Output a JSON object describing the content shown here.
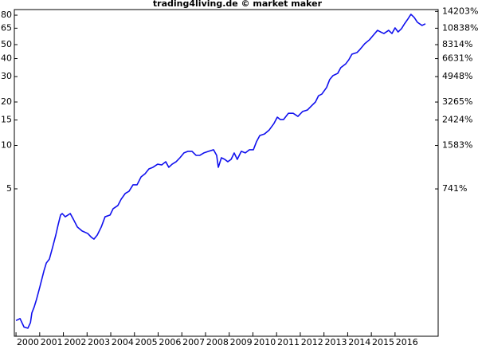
{
  "chart_data": {
    "type": "line",
    "title": "trading4living.de © market maker",
    "x": [
      2000.0,
      2000.17,
      2000.34,
      2000.5,
      2000.61,
      2000.67,
      2000.77,
      2000.87,
      2001.01,
      2001.18,
      2001.28,
      2001.41,
      2001.55,
      2001.68,
      2001.78,
      2001.88,
      2001.95,
      2002.08,
      2002.29,
      2002.42,
      2002.59,
      2002.79,
      2003.03,
      2003.19,
      2003.29,
      2003.43,
      2003.6,
      2003.76,
      2003.97,
      2004.1,
      2004.3,
      2004.44,
      2004.61,
      2004.77,
      2004.94,
      2005.11,
      2005.28,
      2005.45,
      2005.61,
      2005.78,
      2005.98,
      2006.15,
      2006.32,
      2006.45,
      2006.59,
      2006.76,
      2006.92,
      2007.09,
      2007.26,
      2007.43,
      2007.6,
      2007.76,
      2007.93,
      2008.13,
      2008.34,
      2008.47,
      2008.54,
      2008.67,
      2008.81,
      2008.94,
      2009.08,
      2009.21,
      2009.34,
      2009.51,
      2009.68,
      2009.85,
      2010.02,
      2010.15,
      2010.29,
      2010.49,
      2010.69,
      2010.89,
      2011.03,
      2011.16,
      2011.29,
      2011.5,
      2011.7,
      2011.9,
      2012.1,
      2012.3,
      2012.5,
      2012.64,
      2012.77,
      2012.91,
      2013.11,
      2013.24,
      2013.38,
      2013.58,
      2013.71,
      2013.92,
      2014.05,
      2014.18,
      2014.39,
      2014.52,
      2014.72,
      2014.92,
      2015.06,
      2015.26,
      2015.39,
      2015.53,
      2015.73,
      2015.87,
      2016.0,
      2016.13,
      2016.27,
      2016.4,
      2016.54,
      2016.67,
      2016.81,
      2016.94,
      2017.14,
      2017.28
    ],
    "series": [
      {
        "color": "#1010ee",
        "values": [
          0.61,
          0.63,
          0.55,
          0.54,
          0.59,
          0.69,
          0.76,
          0.86,
          1.05,
          1.35,
          1.53,
          1.63,
          1.98,
          2.39,
          2.82,
          3.29,
          3.37,
          3.2,
          3.37,
          3.08,
          2.72,
          2.55,
          2.45,
          2.3,
          2.24,
          2.39,
          2.72,
          3.2,
          3.29,
          3.64,
          3.83,
          4.24,
          4.64,
          4.81,
          5.33,
          5.33,
          6.05,
          6.37,
          6.87,
          7.05,
          7.41,
          7.32,
          7.71,
          7.05,
          7.41,
          7.71,
          8.21,
          8.87,
          9.1,
          9.1,
          8.53,
          8.53,
          8.87,
          9.1,
          9.33,
          8.53,
          7.05,
          8.21,
          8.0,
          7.71,
          8.0,
          8.87,
          8.0,
          9.1,
          8.87,
          9.33,
          9.33,
          10.6,
          11.7,
          12.0,
          12.8,
          14.2,
          15.7,
          15.1,
          15.1,
          16.7,
          16.7,
          15.9,
          17.2,
          17.6,
          19.0,
          20.0,
          22.1,
          22.7,
          25.2,
          28.6,
          30.5,
          31.6,
          34.6,
          36.8,
          39.3,
          42.9,
          44.0,
          46.3,
          50.7,
          54.0,
          57.5,
          62.8,
          61.2,
          59.7,
          62.8,
          59.7,
          65.3,
          61.2,
          64.4,
          69.7,
          75.2,
          81.1,
          77.1,
          71.5,
          67.9,
          69.7
        ]
      }
    ],
    "xlim": [
      1999.93,
      2017.82
    ],
    "xticks": [
      2000,
      2001,
      2002,
      2003,
      2004,
      2005,
      2006,
      2007,
      2008,
      2009,
      2010,
      2011,
      2012,
      2013,
      2014,
      2015,
      2016
    ],
    "ylim": [
      0.475,
      87.5
    ],
    "ylog": true,
    "yticks": [
      5,
      10,
      15,
      20,
      30,
      40,
      50,
      65,
      80
    ],
    "y2lim": [
      -20,
      14630
    ],
    "y2log": true,
    "y2ticks": [
      {
        "value": 741,
        "label": "741%"
      },
      {
        "value": 1583,
        "label": "1583%"
      },
      {
        "value": 2424,
        "label": "2424%"
      },
      {
        "value": 3265,
        "label": "3265%"
      },
      {
        "value": 4948,
        "label": "4948%"
      },
      {
        "value": 6631,
        "label": "6631%"
      },
      {
        "value": 8314,
        "label": "8314%"
      },
      {
        "value": 10838,
        "label": "10838%"
      },
      {
        "value": 14203,
        "label": "14203%"
      }
    ]
  }
}
